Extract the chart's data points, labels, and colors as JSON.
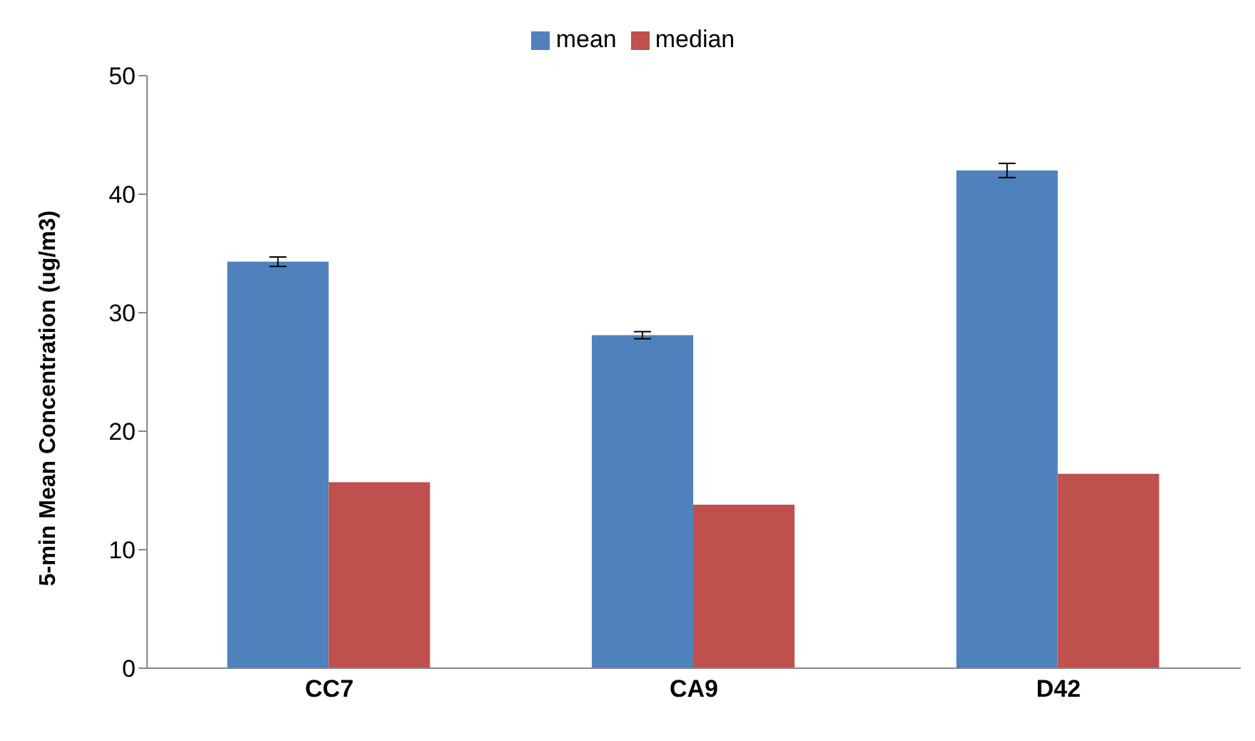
{
  "chart_data": {
    "type": "bar",
    "ylabel": "5-min Mean Concentration (ug/m3)",
    "categories": [
      "CC7",
      "CA9",
      "D42"
    ],
    "series": [
      {
        "name": "mean",
        "color": "#4f81bd",
        "values": [
          34.3,
          28.1,
          42.0
        ],
        "errors": [
          0.4,
          0.3,
          0.6
        ]
      },
      {
        "name": "median",
        "color": "#c0504d",
        "values": [
          15.7,
          13.8,
          16.4
        ]
      }
    ],
    "ylim": [
      0,
      50
    ],
    "yticks": [
      0,
      10,
      20,
      30,
      40,
      50
    ],
    "grid": false,
    "legend": "top"
  }
}
